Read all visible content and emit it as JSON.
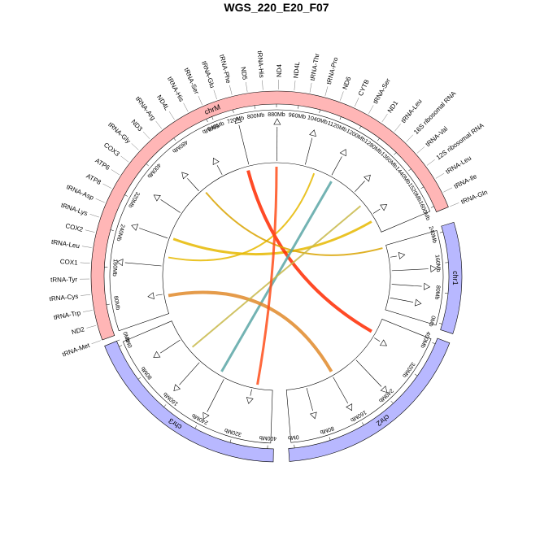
{
  "chart_data": {
    "type": "circos",
    "title": "WGS_220_E20_F07",
    "chromosomes": [
      {
        "name": "chrM",
        "color": "#ffb6b6",
        "tick_labels": [
          "640Mb",
          "720Mb",
          "800Mb",
          "880Mb",
          "960Mb",
          "1040Mb",
          "1120Mb",
          "1200Mb",
          "1280Mb",
          "1360Mb",
          "1440Mb",
          "1520Mb",
          "1600Mb"
        ],
        "lower_tick_labels": [
          "0Mb",
          "80Mb",
          "160Mb",
          "240Mb",
          "320Mb",
          "400Mb",
          "480Mb",
          "560Mb"
        ]
      },
      {
        "name": "chr1",
        "color": "#b8b8ff",
        "tick_labels": [
          "0Mb",
          "80Mb",
          "160Mb",
          "240Mb"
        ]
      },
      {
        "name": "chr2",
        "color": "#b8b8ff",
        "tick_labels": [
          "0Mb",
          "80Mb",
          "160Mb",
          "240Mb",
          "320Mb",
          "400Mb"
        ]
      },
      {
        "name": "chr3",
        "color": "#b8b8ff",
        "tick_labels": [
          "0Mb",
          "80Mb",
          "160Mb",
          "240Mb",
          "320Mb",
          "400Mb"
        ]
      }
    ],
    "gene_labels": [
      "tRNA-Met",
      "ND2",
      "tRNA-Trp",
      "tRNA-Cys",
      "tRNA-Tyr",
      "COX1",
      "tRNA-Leu",
      "COX2",
      "tRNA-Lys",
      "tRNA-Asp",
      "ATP8",
      "ATP6",
      "COX3",
      "tRNA-Gly",
      "ND3",
      "tRNA-Arg",
      "ND4L",
      "tRNA-His",
      "tRNA-Ser",
      "tRNA-Glu",
      "tRNA-Phe",
      "ND5",
      "tRNA-His",
      "ND4",
      "ND4L",
      "tRNA-Thr",
      "tRNA-Pro",
      "ND6",
      "CYTB",
      "tRNA-Ser",
      "ND1",
      "tRNA-Leu",
      "16S ribosomal RNA",
      "tRNA-Val",
      "12S ribosomal RNA",
      "tRNA-Leu",
      "tRNA-Ile",
      "tRNA-Gln"
    ],
    "links": [
      {
        "color": "#e6b800"
      },
      {
        "color": "#e6b800"
      },
      {
        "color": "#ff2a00"
      },
      {
        "color": "#d9a300"
      },
      {
        "color": "#5aa6a6"
      },
      {
        "color": "#e0892a"
      },
      {
        "color": "#c8b84a"
      },
      {
        "color": "#ff4d1a"
      }
    ]
  }
}
